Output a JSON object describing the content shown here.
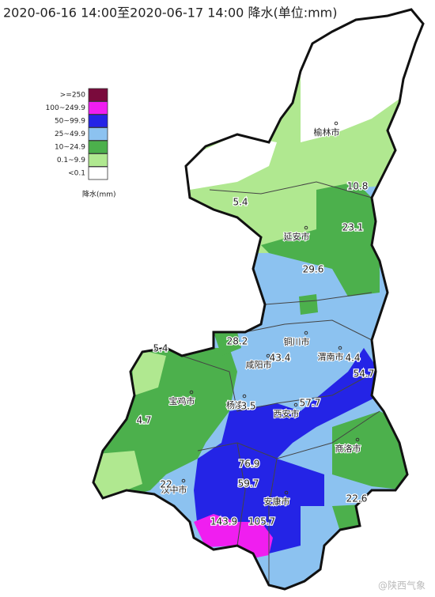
{
  "header": {
    "title": "2020-06-16 14:00至2020-06-17 14:00 降水(单位:mm)"
  },
  "legend": {
    "items": [
      {
        "label": ">=250",
        "color": "#7a0a3c"
      },
      {
        "label": "100~249.9",
        "color": "#f01ef0"
      },
      {
        "label": "50~99.9",
        "color": "#2424e6"
      },
      {
        "label": "25~49.9",
        "color": "#8cc2f0"
      },
      {
        "label": "10~24.9",
        "color": "#4cb04c"
      },
      {
        "label": "0.1~9.9",
        "color": "#b0e890"
      },
      {
        "label": "<0.1",
        "color": "#ffffff"
      }
    ],
    "caption": "降水(mm)"
  },
  "cities": [
    "榆林市",
    "延安市",
    "铜川市",
    "咸阳市",
    "渭南市",
    "宝鸡市",
    "杨凌",
    "西安市",
    "商洛市",
    "汉中市",
    "安康市"
  ],
  "rainfall_labels": [
    "10.8",
    "5.4",
    "23.1",
    "29.6",
    "5.4",
    "28.2",
    "43.4",
    "4.4",
    "54.7",
    "57.7",
    "3.5",
    "4.7",
    "76.9",
    "59.7",
    "22",
    "22.6",
    "143.9",
    "105.7"
  ],
  "watermark": "@陕西气象"
}
